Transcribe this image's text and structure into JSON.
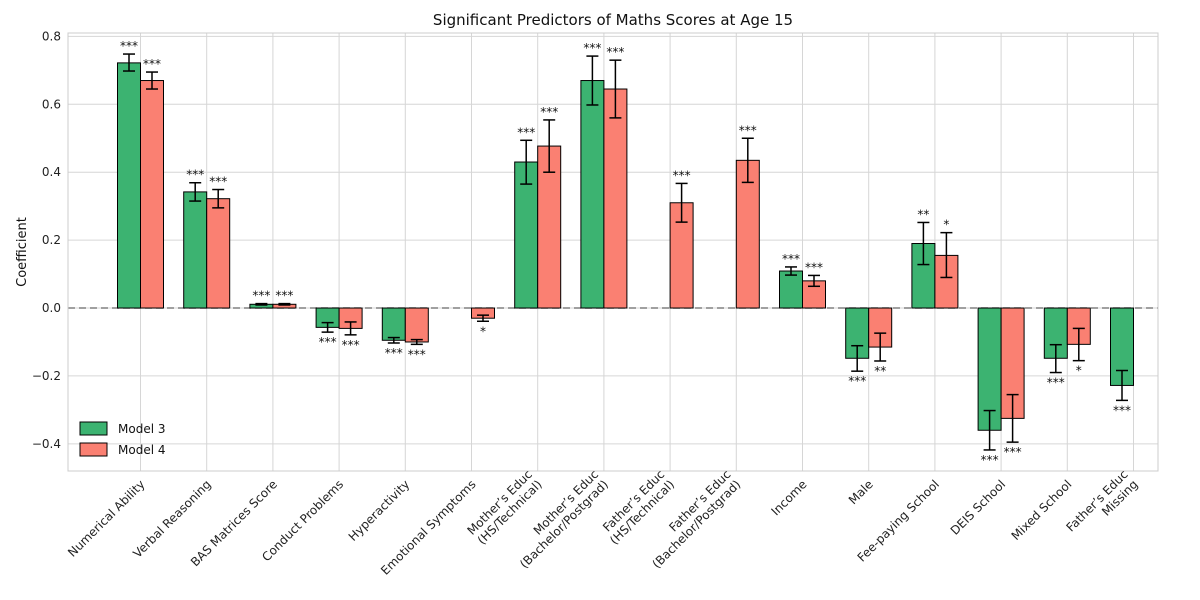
{
  "chart_data": {
    "type": "bar",
    "title": "Significant Predictors of Maths Scores at Age 15",
    "xlabel": "",
    "ylabel": "Coefficient",
    "ylim": [
      -0.48,
      0.81
    ],
    "yticks": [
      -0.4,
      -0.2,
      0.0,
      0.2,
      0.4,
      0.6,
      0.8
    ],
    "ytick_labels": [
      "−0.4",
      "−0.2",
      "0.0",
      "0.2",
      "0.4",
      "0.6",
      "0.8"
    ],
    "grid": true,
    "legend_position": "bottom-left",
    "reference_line": {
      "y": 0,
      "style": "dashed"
    },
    "categories": [
      [
        "Numerical Ability"
      ],
      [
        "Verbal Reasoning"
      ],
      [
        "BAS Matrices Score"
      ],
      [
        "Conduct Problems"
      ],
      [
        "Hyperactivity"
      ],
      [
        "Emotional Symptoms"
      ],
      [
        "Mother’s Educ",
        "(HS/Technical)"
      ],
      [
        "Mother’s Educ",
        "(Bachelor/Postgrad)"
      ],
      [
        "Father’s Educ",
        "(HS/Technical)"
      ],
      [
        "Father’s Educ",
        "(Bachelor/Postgrad)"
      ],
      [
        "Income"
      ],
      [
        "Male"
      ],
      [
        "Fee-paying School"
      ],
      [
        "DEIS School"
      ],
      [
        "Mixed School"
      ],
      [
        "Father’s Educ",
        "Missing"
      ]
    ],
    "series": [
      {
        "name": "Model 3",
        "color": "#3cb371",
        "values": [
          0.722,
          0.342,
          0.011,
          -0.057,
          -0.095,
          null,
          0.43,
          0.67,
          null,
          null,
          0.109,
          -0.148,
          0.19,
          -0.36,
          -0.148,
          -0.228
        ],
        "err_low": [
          0.698,
          0.315,
          0.009,
          -0.071,
          -0.103,
          null,
          0.365,
          0.598,
          null,
          null,
          0.097,
          -0.186,
          0.128,
          -0.418,
          -0.19,
          -0.272
        ],
        "err_high": [
          0.748,
          0.369,
          0.013,
          -0.043,
          -0.087,
          null,
          0.494,
          0.742,
          null,
          null,
          0.121,
          -0.111,
          0.252,
          -0.302,
          -0.108,
          -0.184
        ],
        "significance": [
          "***",
          "***",
          "***",
          "***",
          "***",
          "",
          "***",
          "***",
          "",
          "",
          "***",
          "***",
          "**",
          "***",
          "***",
          "***"
        ]
      },
      {
        "name": "Model 4",
        "color": "#fa8072",
        "values": [
          0.67,
          0.322,
          0.011,
          -0.06,
          -0.1,
          -0.03,
          0.477,
          0.645,
          0.31,
          0.435,
          0.08,
          -0.115,
          0.155,
          -0.325,
          -0.107,
          null
        ],
        "err_low": [
          0.645,
          0.295,
          0.009,
          -0.079,
          -0.107,
          -0.039,
          0.4,
          0.56,
          0.253,
          0.37,
          0.064,
          -0.156,
          0.09,
          -0.395,
          -0.155,
          null
        ],
        "err_high": [
          0.695,
          0.349,
          0.013,
          -0.041,
          -0.093,
          -0.021,
          0.554,
          0.73,
          0.367,
          0.5,
          0.096,
          -0.074,
          0.222,
          -0.255,
          -0.06,
          null
        ],
        "significance": [
          "***",
          "***",
          "***",
          "***",
          "***",
          "*",
          "***",
          "***",
          "***",
          "***",
          "***",
          "**",
          "*",
          "***",
          "*",
          ""
        ]
      }
    ]
  }
}
